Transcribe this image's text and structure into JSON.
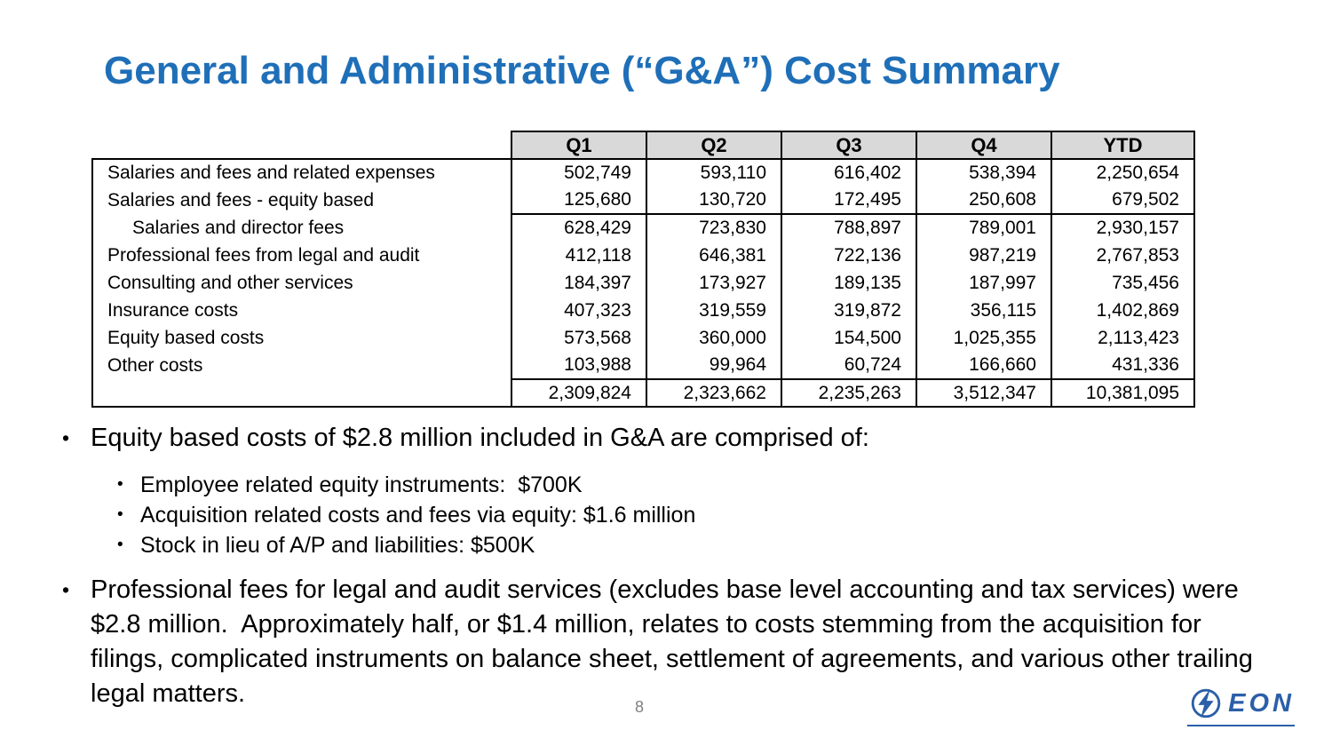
{
  "slide": {
    "title": "General and Administrative (“G&A”) Cost Summary",
    "page_number": "8"
  },
  "colors": {
    "title_blue": "#1F6FB8",
    "header_bg": "#D9D9D9",
    "logo_blue": "#2B5FA8",
    "page_number_gray": "#7F7F7F"
  },
  "table": {
    "columns": [
      "Q1",
      "Q2",
      "Q3",
      "Q4",
      "YTD"
    ],
    "rows": [
      {
        "label": "Salaries and fees and related expenses",
        "indent": false,
        "rule_above": false,
        "values": [
          "502,749",
          "593,110",
          "616,402",
          "538,394",
          "2,250,654"
        ]
      },
      {
        "label": "Salaries and fees - equity based",
        "indent": false,
        "rule_above": false,
        "values": [
          "125,680",
          "130,720",
          "172,495",
          "250,608",
          "679,502"
        ]
      },
      {
        "label": "Salaries and director fees",
        "indent": true,
        "rule_above": true,
        "values": [
          "628,429",
          "723,830",
          "788,897",
          "789,001",
          "2,930,157"
        ]
      },
      {
        "label": "Professional fees from legal and audit",
        "indent": false,
        "rule_above": false,
        "values": [
          "412,118",
          "646,381",
          "722,136",
          "987,219",
          "2,767,853"
        ]
      },
      {
        "label": "Consulting and other services",
        "indent": false,
        "rule_above": false,
        "values": [
          "184,397",
          "173,927",
          "189,135",
          "187,997",
          "735,456"
        ]
      },
      {
        "label": "Insurance costs",
        "indent": false,
        "rule_above": false,
        "values": [
          "407,323",
          "319,559",
          "319,872",
          "356,115",
          "1,402,869"
        ]
      },
      {
        "label": "Equity based costs",
        "indent": false,
        "rule_above": false,
        "values": [
          "573,568",
          "360,000",
          "154,500",
          "1,025,355",
          "2,113,423"
        ]
      },
      {
        "label": "Other costs",
        "indent": false,
        "rule_above": false,
        "values": [
          "103,988",
          "99,964",
          "60,724",
          "166,660",
          "431,336"
        ]
      }
    ],
    "total_row": {
      "label": "",
      "values": [
        "2,309,824",
        "2,323,662",
        "2,235,263",
        "3,512,347",
        "10,381,095"
      ]
    }
  },
  "bullets": [
    {
      "level": 1,
      "text": "Equity based costs of $2.8 million included in G&A are comprised of:"
    },
    {
      "level": 2,
      "text": "Employee related equity instruments:  $700K"
    },
    {
      "level": 2,
      "text": "Acquisition related costs and fees via equity: $1.6 million"
    },
    {
      "level": 2,
      "text": "Stock in lieu of A/P and liabilities: $500K"
    },
    {
      "level": 1,
      "text": "Professional fees for legal and audit services (excludes base level accounting and tax services) were $2.8 million.  Approximately half, or $1.4 million, relates to costs stemming from the acquisition for filings, complicated instruments on balance sheet, settlement of agreements, and various other trailing legal matters."
    }
  ],
  "logo": {
    "text": "EON"
  }
}
